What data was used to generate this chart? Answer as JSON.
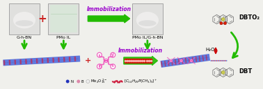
{
  "bg_color": "#f0f0ec",
  "immobilization_text": "Immobilization",
  "immobilization_color": "#9900cc",
  "label_gbbn": "G-h-BN",
  "label_pmol": "PMo IL",
  "label_pmoilgbn": "PMo IL/G-h-BN",
  "label_dbto2": "DBTO₂",
  "label_dbt": "DBT",
  "label_h2o2": "H₂O₂",
  "arrow_green": "#22bb00",
  "arrow_red": "#dd0000",
  "legend_N_color": "#2233bb",
  "legend_B_color": "#dd88aa",
  "legend_O_color": "#dddddd",
  "legend_IL_color": "#cc1133",
  "gbn_blue": "#3355cc",
  "gbn_red": "#cc2244",
  "cross_color": "#ee55bb",
  "plus_color": "#cc2222",
  "photo_border": "#999999",
  "photo_bg1": "#e0e0de",
  "photo_bg2": "#d8e8d8",
  "white_powder": "#f0efee",
  "strip_blue": "#4466dd",
  "strip_red": "#cc2244"
}
